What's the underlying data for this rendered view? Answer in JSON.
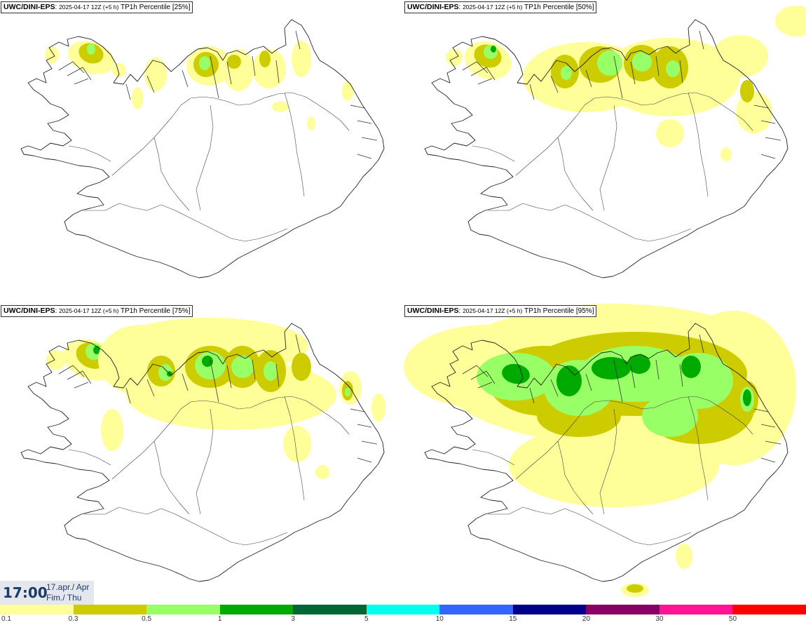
{
  "panels": [
    {
      "model": "UWC/DINI-EPS",
      "run": "2025-04-17 12Z (+5 h)",
      "param": "TP1h Percentile [25%]"
    },
    {
      "model": "UWC/DINI-EPS",
      "run": "2025-04-17 12Z (+5 h)",
      "param": "TP1h Percentile [50%]"
    },
    {
      "model": "UWC/DINI-EPS",
      "run": "2025-04-17 12Z (+5 h)",
      "param": "TP1h Percentile [75%]"
    },
    {
      "model": "UWC/DINI-EPS",
      "run": "2025-04-17 12Z (+5 h)",
      "param": "TP1h Percentile [95%]"
    }
  ],
  "timestamp": {
    "time": "17:00",
    "date_line1": "17.apr./ Apr",
    "date_line2": "Fim./ Thu"
  },
  "legend": {
    "colors": [
      "#ffff99",
      "#cccc00",
      "#99ff66",
      "#00aa00",
      "#006633",
      "#00ffee",
      "#3366ff",
      "#000088",
      "#880066",
      "#ff1493",
      "#ff0000"
    ],
    "ticks": [
      "0.1",
      "0.3",
      "0.5",
      "1",
      "3",
      "5",
      "10",
      "15",
      "20",
      "30",
      "50"
    ]
  }
}
